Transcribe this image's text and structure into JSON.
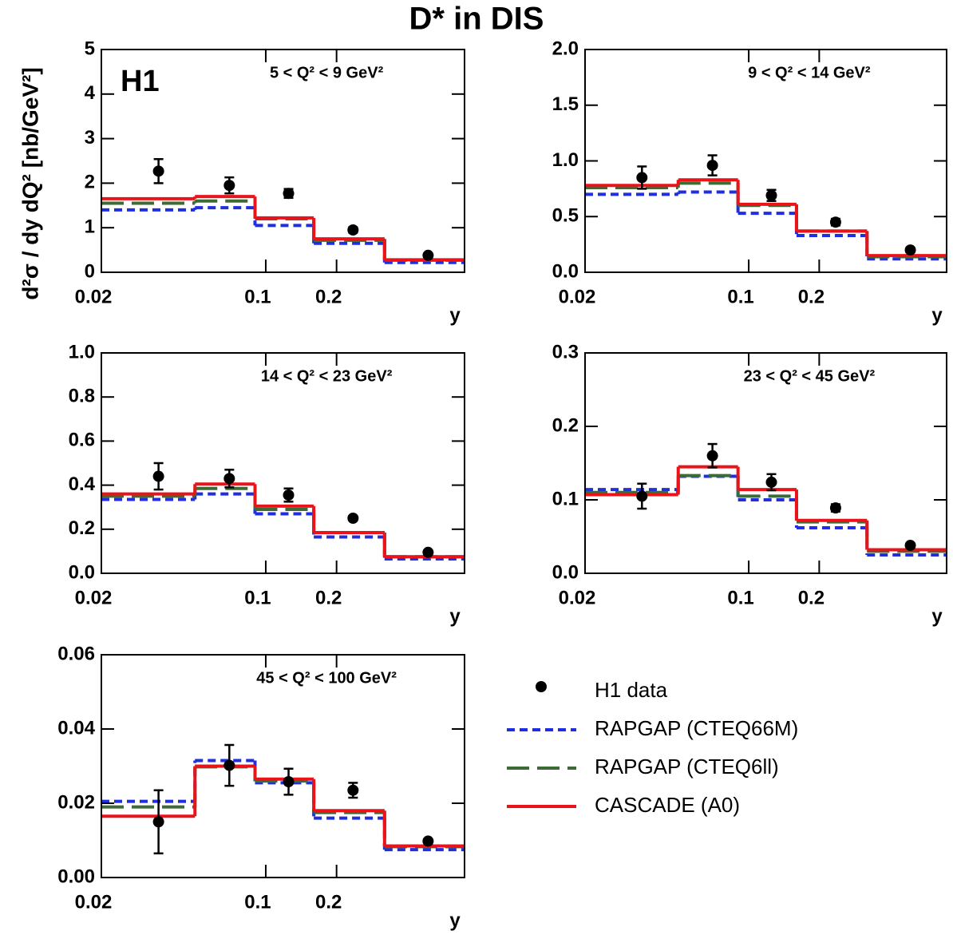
{
  "title": "D* in DIS",
  "ylabel": "d²σ / dy dQ² [nb/GeV²]",
  "chart_data": [
    {
      "type": "histogram",
      "annotation": "H1",
      "label": "5 < Q² < 9 GeV²",
      "xlabel": "y",
      "xscale": "log",
      "xlim": [
        0.02,
        0.7
      ],
      "xticks": [
        0.02,
        0.1,
        0.2
      ],
      "ylim": [
        0,
        5
      ],
      "yticks": [
        0,
        1,
        2,
        3,
        4,
        5
      ],
      "bins": [
        0.02,
        0.05,
        0.09,
        0.16,
        0.32,
        0.7
      ],
      "series": [
        {
          "name": "H1 data",
          "color": "#000000",
          "style": "marker",
          "x": [
            0.035,
            0.07,
            0.125,
            0.235,
            0.49
          ],
          "values": [
            2.27,
            1.95,
            1.77,
            0.95,
            0.38
          ],
          "errors": [
            0.27,
            0.18,
            0.1,
            0.06,
            0.04
          ]
        },
        {
          "name": "RAPGAP (CTEQ66M)",
          "color": "#1f2fe0",
          "style": "dotted",
          "values": [
            1.4,
            1.45,
            1.05,
            0.65,
            0.22
          ]
        },
        {
          "name": "RAPGAP (CTEQ6ll)",
          "color": "#3d6b35",
          "style": "dashed",
          "values": [
            1.55,
            1.6,
            1.2,
            0.72,
            0.27
          ]
        },
        {
          "name": "CASCADE (A0)",
          "color": "#e8141a",
          "style": "solid",
          "values": [
            1.65,
            1.7,
            1.22,
            0.75,
            0.28
          ]
        }
      ]
    },
    {
      "type": "histogram",
      "label": "9 < Q² < 14 GeV²",
      "xlabel": "y",
      "xscale": "log",
      "xlim": [
        0.02,
        0.7
      ],
      "xticks": [
        0.02,
        0.1,
        0.2
      ],
      "ylim": [
        0,
        2
      ],
      "yticks": [
        {
          "value": 0,
          "label": "0.0"
        },
        0.5,
        {
          "value": 1,
          "label": "1.0"
        },
        1.5,
        {
          "value": 2,
          "label": "2.0"
        }
      ],
      "bins": [
        0.02,
        0.05,
        0.09,
        0.16,
        0.32,
        0.7
      ],
      "series": [
        {
          "color": "#000000",
          "style": "marker",
          "x": [
            0.035,
            0.07,
            0.125,
            0.235,
            0.49
          ],
          "values": [
            0.85,
            0.96,
            0.69,
            0.45,
            0.2
          ],
          "errors": [
            0.1,
            0.09,
            0.05,
            0.03,
            0.02
          ]
        },
        {
          "color": "#1f2fe0",
          "style": "dotted",
          "values": [
            0.7,
            0.72,
            0.53,
            0.33,
            0.12
          ]
        },
        {
          "color": "#3d6b35",
          "style": "dashed",
          "values": [
            0.76,
            0.8,
            0.6,
            0.37,
            0.14
          ]
        },
        {
          "color": "#e8141a",
          "style": "solid",
          "values": [
            0.78,
            0.83,
            0.61,
            0.37,
            0.15
          ]
        }
      ]
    },
    {
      "type": "histogram",
      "label": "14 < Q² < 23 GeV²",
      "xlabel": "y",
      "xscale": "log",
      "xlim": [
        0.02,
        0.7
      ],
      "xticks": [
        0.02,
        0.1,
        0.2
      ],
      "ylim": [
        0,
        1
      ],
      "yticks": [
        {
          "value": 0,
          "label": "0.0"
        },
        0.2,
        0.4,
        0.6,
        0.8,
        {
          "value": 1,
          "label": "1.0"
        }
      ],
      "bins": [
        0.02,
        0.05,
        0.09,
        0.16,
        0.32,
        0.7
      ],
      "series": [
        {
          "color": "#000000",
          "style": "marker",
          "x": [
            0.035,
            0.07,
            0.125,
            0.235,
            0.49
          ],
          "values": [
            0.44,
            0.43,
            0.355,
            0.25,
            0.095
          ],
          "errors": [
            0.06,
            0.04,
            0.03,
            0.01,
            0.008
          ]
        },
        {
          "color": "#1f2fe0",
          "style": "dotted",
          "values": [
            0.335,
            0.36,
            0.27,
            0.165,
            0.065
          ]
        },
        {
          "color": "#3d6b35",
          "style": "dashed",
          "values": [
            0.35,
            0.385,
            0.29,
            0.185,
            0.075
          ]
        },
        {
          "color": "#e8141a",
          "style": "solid",
          "values": [
            0.36,
            0.405,
            0.305,
            0.185,
            0.075
          ]
        }
      ]
    },
    {
      "type": "histogram",
      "label": "23 < Q² < 45 GeV²",
      "xlabel": "y",
      "xscale": "log",
      "xlim": [
        0.02,
        0.7
      ],
      "xticks": [
        0.02,
        0.1,
        0.2
      ],
      "ylim": [
        0,
        0.3
      ],
      "yticks": [
        {
          "value": 0,
          "label": "0.0"
        },
        0.1,
        0.2,
        0.3
      ],
      "bins": [
        0.02,
        0.05,
        0.09,
        0.16,
        0.32,
        0.7
      ],
      "series": [
        {
          "color": "#000000",
          "style": "marker",
          "x": [
            0.035,
            0.07,
            0.125,
            0.235,
            0.49
          ],
          "values": [
            0.105,
            0.16,
            0.124,
            0.089,
            0.038
          ],
          "errors": [
            0.017,
            0.016,
            0.011,
            0.005,
            0.003
          ]
        },
        {
          "color": "#1f2fe0",
          "style": "dotted",
          "values": [
            0.114,
            0.132,
            0.1,
            0.062,
            0.025
          ]
        },
        {
          "color": "#3d6b35",
          "style": "dashed",
          "values": [
            0.11,
            0.133,
            0.105,
            0.07,
            0.03
          ]
        },
        {
          "color": "#e8141a",
          "style": "solid",
          "values": [
            0.107,
            0.145,
            0.114,
            0.072,
            0.032
          ]
        }
      ]
    },
    {
      "type": "histogram",
      "label": "45 < Q² < 100 GeV²",
      "xlabel": "y",
      "xscale": "log",
      "xlim": [
        0.02,
        0.7
      ],
      "xticks": [
        0.02,
        0.1,
        0.2
      ],
      "ylim": [
        0,
        0.06
      ],
      "yticks": [
        {
          "value": 0,
          "label": "0.00"
        },
        0.02,
        0.04,
        0.06
      ],
      "bins": [
        0.02,
        0.05,
        0.09,
        0.16,
        0.32,
        0.7
      ],
      "series": [
        {
          "color": "#000000",
          "style": "marker",
          "x": [
            0.035,
            0.07,
            0.125,
            0.235,
            0.49
          ],
          "values": [
            0.015,
            0.0302,
            0.0258,
            0.0235,
            0.0098
          ],
          "errors": [
            0.0085,
            0.0055,
            0.0035,
            0.002,
            0.0006
          ]
        },
        {
          "color": "#1f2fe0",
          "style": "dotted",
          "values": [
            0.0205,
            0.0315,
            0.0255,
            0.016,
            0.0075
          ]
        },
        {
          "color": "#3d6b35",
          "style": "dashed",
          "values": [
            0.019,
            0.0298,
            0.026,
            0.0175,
            0.0083
          ]
        },
        {
          "color": "#e8141a",
          "style": "solid",
          "values": [
            0.0165,
            0.03,
            0.0265,
            0.018,
            0.0085
          ]
        }
      ]
    }
  ]
}
